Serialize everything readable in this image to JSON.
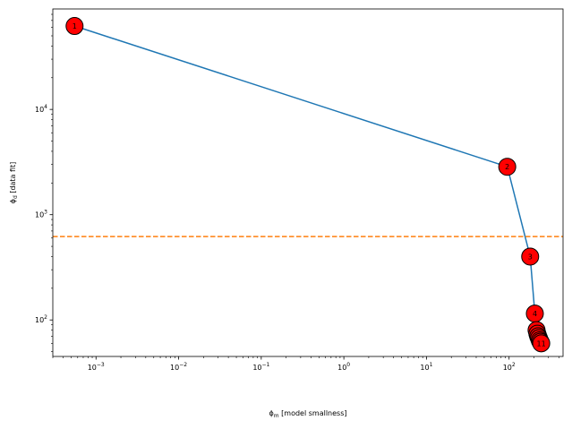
{
  "chart_data": {
    "type": "line",
    "title": "",
    "xlabel": "$\\phi_m$ [model smallness]",
    "ylabel": "$\\phi_d$ [data fit]",
    "xlabel_parts": {
      "symbol": "ϕ",
      "sub": "m",
      "rest": " [model smallness]"
    },
    "ylabel_parts": {
      "symbol": "ϕ",
      "sub": "d",
      "rest": " [data fit]"
    },
    "x_scale": "log",
    "y_scale": "log",
    "xlim": [
      0.0003,
      450
    ],
    "ylim": [
      45,
      90000
    ],
    "grid": false,
    "x_ticks": [
      {
        "value": 0.001,
        "base": "10",
        "exp": "−3"
      },
      {
        "value": 0.01,
        "base": "10",
        "exp": "−2"
      },
      {
        "value": 0.1,
        "base": "10",
        "exp": "−1"
      },
      {
        "value": 1,
        "base": "10",
        "exp": "0"
      },
      {
        "value": 10,
        "base": "10",
        "exp": "1"
      },
      {
        "value": 100,
        "base": "10",
        "exp": "2"
      }
    ],
    "y_ticks": [
      {
        "value": 100,
        "base": "10",
        "exp": "2"
      },
      {
        "value": 1000,
        "base": "10",
        "exp": "3"
      },
      {
        "value": 10000,
        "base": "10",
        "exp": "4"
      }
    ],
    "series": [
      {
        "color": "#1f77b4",
        "marker_fill": "#ff0000",
        "marker_edge": "#000000",
        "points": [
          {
            "x": 0.00055,
            "y": 62000,
            "label": "1"
          },
          {
            "x": 95,
            "y": 2850,
            "label": "2"
          },
          {
            "x": 180,
            "y": 400,
            "label": "3"
          },
          {
            "x": 205,
            "y": 115,
            "label": "4"
          },
          {
            "x": 215,
            "y": 80,
            "label": "5"
          },
          {
            "x": 220,
            "y": 74,
            "label": "6"
          },
          {
            "x": 225,
            "y": 70,
            "label": "7"
          },
          {
            "x": 230,
            "y": 67,
            "label": "8"
          },
          {
            "x": 235,
            "y": 64,
            "label": "9"
          },
          {
            "x": 240,
            "y": 62,
            "label": "10"
          },
          {
            "x": 245,
            "y": 60,
            "label": "11"
          }
        ]
      }
    ],
    "target_line": {
      "y": 620,
      "color": "#ff7f0e",
      "style": "dashed"
    }
  }
}
